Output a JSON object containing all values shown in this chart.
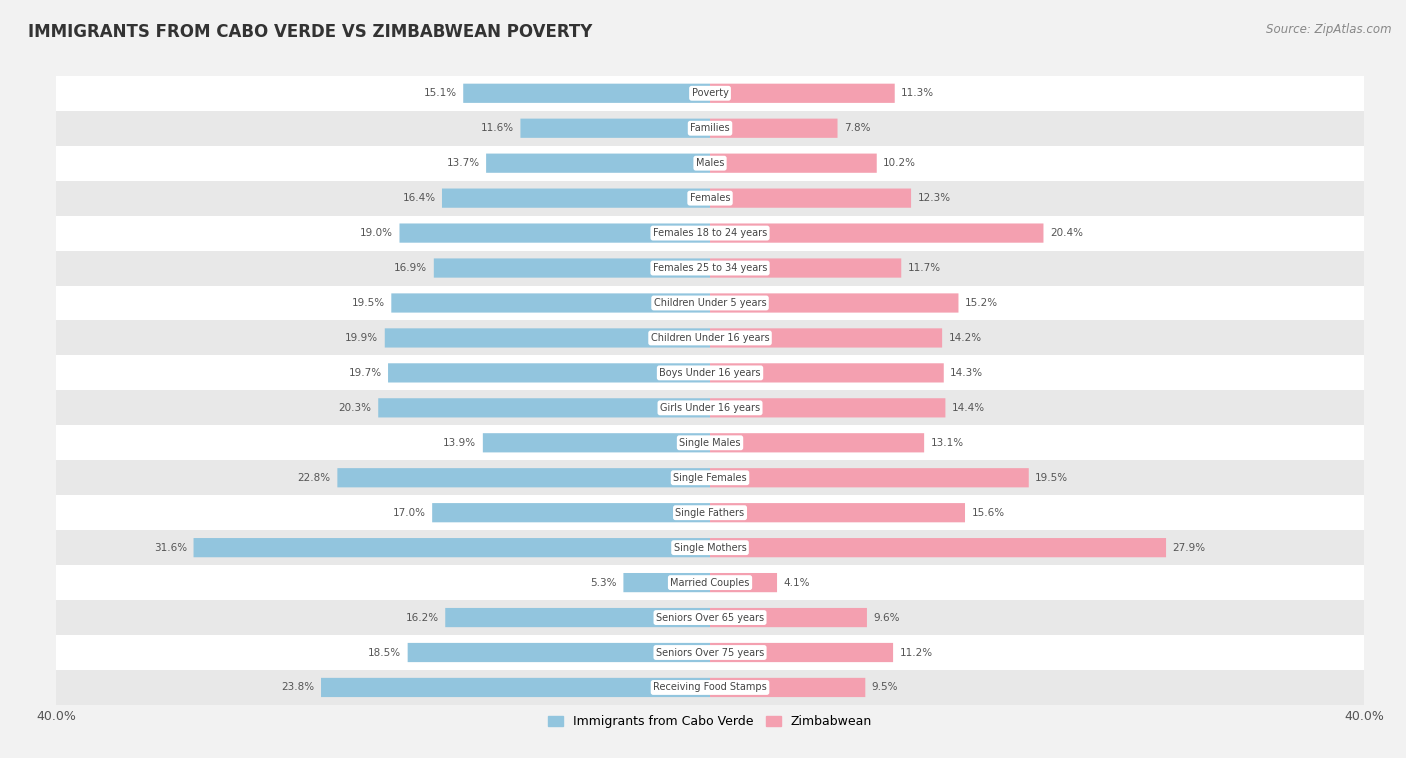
{
  "title": "IMMIGRANTS FROM CABO VERDE VS ZIMBABWEAN POVERTY",
  "source": "Source: ZipAtlas.com",
  "categories": [
    "Poverty",
    "Families",
    "Males",
    "Females",
    "Females 18 to 24 years",
    "Females 25 to 34 years",
    "Children Under 5 years",
    "Children Under 16 years",
    "Boys Under 16 years",
    "Girls Under 16 years",
    "Single Males",
    "Single Females",
    "Single Fathers",
    "Single Mothers",
    "Married Couples",
    "Seniors Over 65 years",
    "Seniors Over 75 years",
    "Receiving Food Stamps"
  ],
  "cabo_verde": [
    15.1,
    11.6,
    13.7,
    16.4,
    19.0,
    16.9,
    19.5,
    19.9,
    19.7,
    20.3,
    13.9,
    22.8,
    17.0,
    31.6,
    5.3,
    16.2,
    18.5,
    23.8
  ],
  "zimbabwean": [
    11.3,
    7.8,
    10.2,
    12.3,
    20.4,
    11.7,
    15.2,
    14.2,
    14.3,
    14.4,
    13.1,
    19.5,
    15.6,
    27.9,
    4.1,
    9.6,
    11.2,
    9.5
  ],
  "cabo_verde_color": "#92C5DE",
  "zimbabwean_color": "#F4A0B0",
  "row_color_odd": "#FFFFFF",
  "row_color_even": "#E8E8E8",
  "background_color": "#F2F2F2",
  "axis_limit": 40.0,
  "legend_cabo_verde": "Immigrants from Cabo Verde",
  "legend_zimbabwean": "Zimbabwean",
  "bar_height": 0.55
}
